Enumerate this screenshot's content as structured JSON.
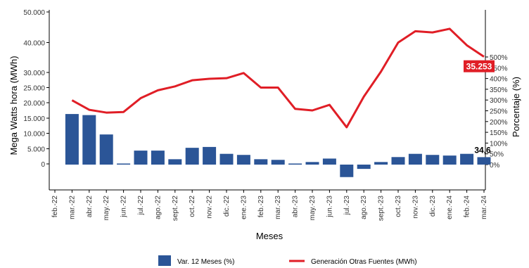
{
  "chart_data": {
    "type": "bar",
    "title": "",
    "xlabel": "Meses",
    "ylabel_left": "Mega Watts hora (MWh)",
    "ylabel_right": "Porcentaje (%)",
    "categories": [
      "feb.-22",
      "mar.-22",
      "abr.-22",
      "may.-22",
      "jun.-22",
      "jul.-22",
      "ago.-22",
      "sept.-22",
      "oct.-22",
      "nov.-22",
      "dic.-22",
      "ene.-23",
      "feb.-23",
      "mar.-23",
      "abr.-23",
      "may.-23",
      "jun.-23",
      "jul.-23",
      "ago.-23",
      "sept.-23",
      "oct.-23",
      "nov.-23",
      "dic.-23",
      "ene.-24",
      "feb.-24",
      "mar.-24"
    ],
    "left_axis": {
      "ticks": [
        0,
        5000,
        10000,
        15000,
        20000,
        25000,
        30000,
        40000,
        50000
      ],
      "tick_labels": [
        "0",
        "5.000",
        "10.000",
        "15.000",
        "20.000",
        "25.000",
        "30.000",
        "40.000",
        "50.000"
      ]
    },
    "right_axis": {
      "ticks": [
        0,
        50,
        100,
        150,
        200,
        250,
        300,
        350,
        400,
        450,
        500
      ],
      "tick_labels": [
        "0%",
        "50%",
        "100%",
        "150%",
        "200%",
        "250%",
        "300%",
        "350%",
        "400%",
        "450%",
        "500%"
      ]
    },
    "series": [
      {
        "name": "Var. 12 Meses (%)",
        "type": "bar",
        "axis": "right",
        "color": "#2b5597",
        "values": [
          null,
          235,
          230,
          140,
          5,
          65,
          65,
          25,
          78,
          82,
          50,
          45,
          25,
          22,
          5,
          12,
          28,
          -58,
          -20,
          12,
          35,
          50,
          45,
          42,
          50,
          34.6
        ]
      },
      {
        "name": "Generación Otras Fuentes (MWh)",
        "type": "line",
        "axis": "left",
        "color": "#e01e26",
        "values": [
          null,
          20800,
          17700,
          16800,
          17000,
          21500,
          24100,
          25400,
          27400,
          27900,
          28100,
          29800,
          25000,
          25000,
          18000,
          17500,
          19300,
          12000,
          22000,
          30300,
          40000,
          43700,
          43300,
          44500,
          39100,
          35253
        ]
      }
    ],
    "annotations": {
      "last_bar_label": "34,6",
      "last_line_label": "35.253"
    },
    "legend": {
      "placement": "bottom"
    },
    "grid": false
  }
}
